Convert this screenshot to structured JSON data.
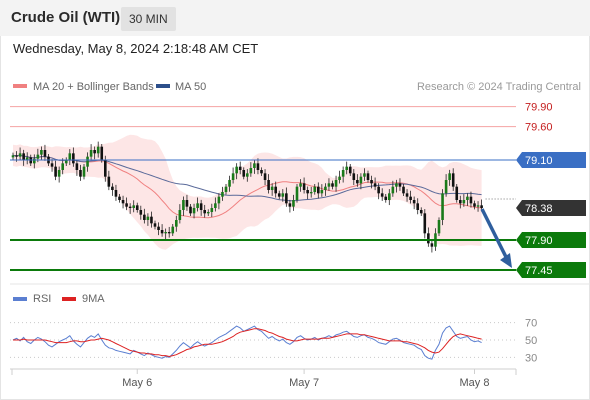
{
  "header": {
    "title": "Crude Oil (WTI)",
    "interval": "30 MIN",
    "datetime": "Wednesday, May 8, 2024 2:18:48 AM CET"
  },
  "legend": {
    "ma20_label": "MA 20 + Bollinger Bands",
    "ma50_label": "MA 50",
    "credit": "Research © 2024 Trading Central"
  },
  "rsi_legend": {
    "rsi_label": "RSI",
    "ma9_label": "9MA"
  },
  "colors": {
    "up": "#1a7a1a",
    "down": "#111111",
    "bollinger": "#fde0e0",
    "ma20": "#f08080",
    "ma50": "#5a6a9a",
    "resistance": "#f5a3a3",
    "pivot": "#3a6fc4",
    "support": "#0b7a0b",
    "current": "#333333",
    "arrow": "#2f5f9e",
    "rsi": "#5b7fd1",
    "rsi_ma": "#dd2222"
  },
  "chart_data": [
    {
      "type": "candlestick",
      "title": "Crude Oil (WTI) 30 MIN",
      "ylim": [
        77.3,
        80.0
      ],
      "x_tick_labels": [
        "May 6",
        "May 7",
        "May 8"
      ],
      "indicators": [
        "MA 20 + Bollinger Bands",
        "MA 50"
      ],
      "levels": [
        {
          "value": 79.9,
          "label": "79.90",
          "kind": "resistance"
        },
        {
          "value": 79.6,
          "label": "79.60",
          "kind": "resistance"
        },
        {
          "value": 79.1,
          "label": "79.10",
          "kind": "pivot"
        },
        {
          "value": 78.38,
          "label": "78.38",
          "kind": "current"
        },
        {
          "value": 77.9,
          "label": "77.90",
          "kind": "support"
        },
        {
          "value": 77.45,
          "label": "77.45",
          "kind": "support"
        }
      ],
      "forecast": {
        "from": 78.38,
        "to": 77.45,
        "direction": "down"
      },
      "close_series": [
        79.17,
        79.15,
        79.2,
        79.1,
        79.14,
        79.05,
        79.12,
        79.18,
        79.25,
        79.15,
        79.05,
        79.0,
        78.85,
        78.95,
        79.05,
        79.1,
        79.2,
        79.05,
        78.95,
        78.85,
        79.0,
        79.15,
        79.25,
        79.2,
        79.3,
        79.1,
        78.85,
        78.7,
        78.65,
        78.55,
        78.5,
        78.45,
        78.4,
        78.38,
        78.42,
        78.35,
        78.28,
        78.2,
        78.25,
        78.15,
        78.1,
        78.05,
        78.0,
        78.02,
        78.0,
        78.1,
        78.2,
        78.35,
        78.5,
        78.4,
        78.3,
        78.38,
        78.45,
        78.35,
        78.3,
        78.32,
        78.38,
        78.45,
        78.55,
        78.62,
        78.7,
        78.8,
        78.9,
        79.0,
        78.95,
        78.85,
        78.9,
        78.98,
        79.05,
        78.95,
        78.9,
        78.8,
        78.65,
        78.7,
        78.6,
        78.55,
        78.6,
        78.45,
        78.4,
        78.5,
        78.7,
        78.75,
        78.65,
        78.6,
        78.62,
        78.7,
        78.6,
        78.65,
        78.7,
        78.75,
        78.7,
        78.8,
        78.85,
        78.95,
        79.0,
        78.9,
        78.8,
        78.75,
        78.85,
        78.9,
        78.8,
        78.75,
        78.7,
        78.6,
        78.55,
        78.5,
        78.6,
        78.7,
        78.75,
        78.7,
        78.6,
        78.55,
        78.5,
        78.45,
        78.35,
        78.3,
        78.0,
        77.85,
        77.8,
        78.0,
        78.2,
        78.6,
        78.8,
        78.9,
        78.7,
        78.5,
        78.45,
        78.5,
        78.55,
        78.45,
        78.4,
        78.42,
        78.38
      ],
      "rsi_ylim": [
        20,
        80
      ],
      "rsi_ticks": [
        "70",
        "50",
        "30"
      ],
      "rsi_series": [
        50,
        52,
        49,
        53,
        48,
        46,
        50,
        53,
        51,
        48,
        44,
        42,
        45,
        48,
        50,
        52,
        55,
        49,
        45,
        42,
        47,
        52,
        55,
        53,
        57,
        50,
        44,
        41,
        40,
        38,
        37,
        36,
        35,
        34,
        38,
        36,
        34,
        32,
        35,
        33,
        31,
        30,
        29,
        31,
        30,
        34,
        38,
        43,
        47,
        44,
        41,
        45,
        48,
        45,
        43,
        45,
        47,
        50,
        53,
        55,
        57,
        60,
        63,
        66,
        64,
        60,
        62,
        64,
        66,
        62,
        60,
        56,
        52,
        54,
        51,
        49,
        51,
        47,
        45,
        48,
        53,
        55,
        52,
        50,
        51,
        53,
        50,
        52,
        53,
        55,
        53,
        56,
        57,
        59,
        60,
        57,
        54,
        53,
        55,
        56,
        53,
        52,
        50,
        47,
        46,
        45,
        48,
        51,
        52,
        50,
        47,
        46,
        45,
        44,
        41,
        39,
        32,
        29,
        28,
        38,
        45,
        58,
        64,
        66,
        60,
        54,
        52,
        53,
        54,
        50,
        48,
        49,
        47
      ],
      "rsi_ma_series": [
        50,
        50,
        50,
        51,
        50,
        50,
        50,
        50,
        50,
        50,
        49,
        48,
        47,
        47,
        47,
        47,
        48,
        49,
        49,
        48,
        48,
        49,
        50,
        50,
        51,
        52,
        51,
        50,
        48,
        46,
        44,
        42,
        40,
        38,
        37,
        36,
        35,
        35,
        34,
        34,
        33,
        33,
        32,
        32,
        31,
        32,
        33,
        35,
        37,
        39,
        40,
        42,
        43,
        44,
        45,
        45,
        45,
        46,
        47,
        48,
        50,
        52,
        54,
        57,
        59,
        60,
        61,
        62,
        63,
        63,
        62,
        61,
        59,
        58,
        56,
        54,
        53,
        51,
        50,
        49,
        49,
        50,
        51,
        51,
        51,
        51,
        51,
        52,
        52,
        52,
        53,
        54,
        55,
        56,
        57,
        57,
        57,
        57,
        56,
        56,
        55,
        54,
        53,
        52,
        51,
        50,
        49,
        49,
        49,
        49,
        48,
        48,
        47,
        46,
        45,
        43,
        41,
        38,
        36,
        35,
        36,
        40,
        45,
        50,
        54,
        56,
        57,
        56,
        55,
        54,
        53,
        52,
        51
      ]
    }
  ]
}
